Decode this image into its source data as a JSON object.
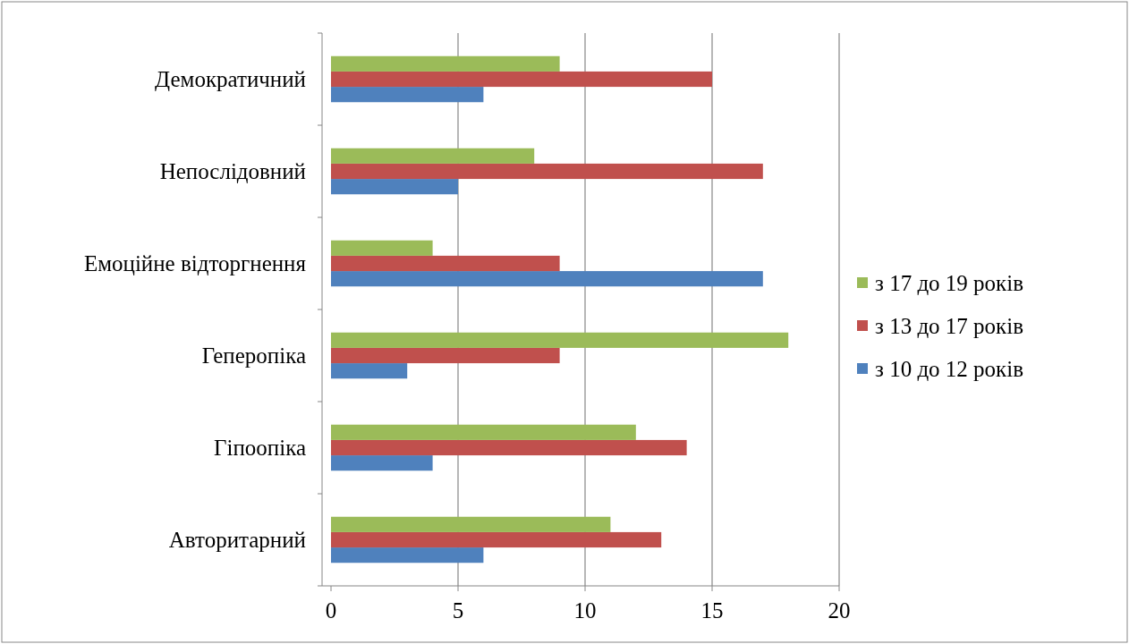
{
  "chart_data": {
    "type": "bar",
    "orientation": "horizontal",
    "categories": [
      "Демократичний",
      "Непослідовний",
      "Емоційне відторгнення",
      "Геперопіка",
      "Гіпоопіка",
      "Авторитарний"
    ],
    "series": [
      {
        "name": "з 10 до 12 років",
        "color": "#4f81bd",
        "values": [
          6,
          5,
          17,
          3,
          4,
          6
        ]
      },
      {
        "name": "з 13 до 17 років",
        "color": "#c0504d",
        "values": [
          15,
          17,
          9,
          9,
          14,
          13
        ]
      },
      {
        "name": "з 17 до 19 років",
        "color": "#9bbb59",
        "values": [
          9,
          8,
          4,
          18,
          12,
          11
        ]
      }
    ],
    "xlim": [
      0,
      20
    ],
    "xticks": [
      0,
      5,
      10,
      15,
      20
    ],
    "grid": "x",
    "legend": "right"
  }
}
